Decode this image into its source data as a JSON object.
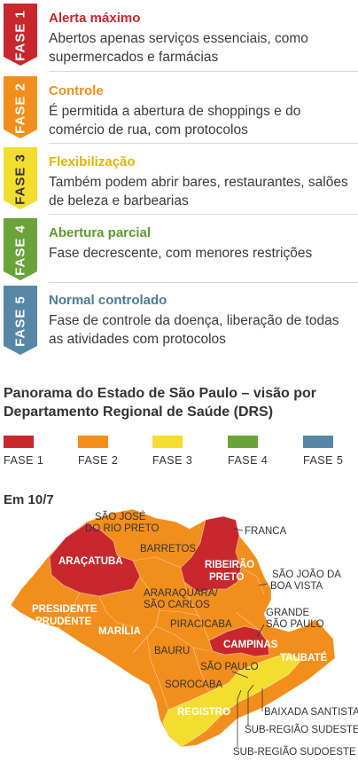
{
  "phases": [
    {
      "tab": "FASE 1",
      "title": "Alerta máximo",
      "desc": "Abertos apenas serviços essenciais, como supermercados e farmácias",
      "color": "#c8282d",
      "tab_text_color": "#ffffff"
    },
    {
      "tab": "FASE 2",
      "title": "Controle",
      "desc": "É permitida a abertura de shoppings e do comércio de rua, com protocolos",
      "color": "#f28e1c",
      "tab_text_color": "#ffffff"
    },
    {
      "tab": "FASE 3",
      "title": "Flexibilização",
      "desc": "Também podem abrir bares, restaurantes, salões de beleza e barbearias",
      "color": "#f3dd2e",
      "tab_text_color": "#333333"
    },
    {
      "tab": "FASE 4",
      "title": "Abertura parcial",
      "desc": "Fase decrescente, com menores restrições",
      "color": "#6aa33a",
      "tab_text_color": "#ffffff"
    },
    {
      "tab": "FASE 5",
      "title": "Normal controlado",
      "desc": "Fase de controle da doença, liberação de todas as atividades com protocolos",
      "color": "#5687a6",
      "tab_text_color": "#ffffff"
    }
  ],
  "panorama": {
    "title": "Panorama do Estado de São Paulo – visão por Departamento Regional de Saúde (DRS)"
  },
  "legend": [
    {
      "label": "FASE 1",
      "color": "#c8282d"
    },
    {
      "label": "FASE 2",
      "color": "#f28e1c"
    },
    {
      "label": "FASE 3",
      "color": "#f3dd2e"
    },
    {
      "label": "FASE 4",
      "color": "#6aa33a"
    },
    {
      "label": "FASE 5",
      "color": "#5687a6"
    }
  ],
  "map": {
    "date": "Em 10/7",
    "labels": {
      "sjrp": [
        "SÃO JOSÉ",
        "DO RIO PRETO"
      ],
      "franca": "FRANCA",
      "barretos": "BARRETOS",
      "aracatuba": "ARAÇATUBA",
      "ribeirao": [
        "RIBEIRÃO",
        "PRETO"
      ],
      "sjbv": [
        "SÃO JOÃO DA",
        "BOA VISTA"
      ],
      "araraquara": [
        "ARARAQUARA/",
        "SÃO CARLOS"
      ],
      "pprudente": [
        "PRESIDENTE",
        "PRUDENTE"
      ],
      "marilia": "MARÍLIA",
      "gsp": [
        "GRANDE",
        "SÃO PAULO"
      ],
      "piracicaba": "PIRACICABA",
      "bauru": "BAURU",
      "campinas": "CAMPINAS",
      "taubate": "TAUBATÉ",
      "saopaulo": "SÃO PAULO",
      "sorocaba": "SOROCABA",
      "registro": "REGISTRO",
      "baixada": "BAIXADA SANTISTA",
      "sudeste": "SUB-REGIÃO SUDESTE",
      "sudoeste": "SUB-REGIÃO SUDOESTE"
    }
  }
}
